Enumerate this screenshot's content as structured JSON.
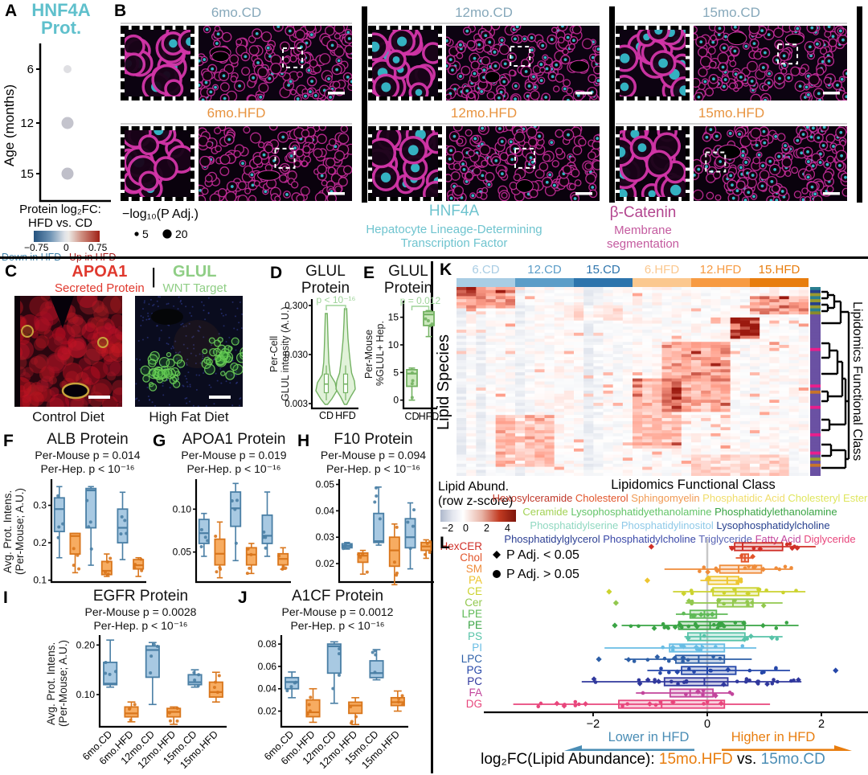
{
  "colors": {
    "teal_title": "#5fc0cc",
    "cd_fill": "#a8c9e2",
    "cd_stroke": "#4a7fa5",
    "hfd_fill": "#f7ac61",
    "hfd_stroke": "#d9761c",
    "green_fill": "#cde9bf",
    "green_stroke": "#74b263",
    "cd_text": "#87a9bb",
    "hfd_text": "#e89440",
    "red_label": "#e0392e",
    "green_label": "#8fce85",
    "magenta_label": "#c45a9f",
    "down_blue": "#3d7fa6",
    "up_red": "#a51c1c"
  },
  "panelA": {
    "letter": "A",
    "title_line1": "HNF4A",
    "title_line2": "Prot.",
    "y_axis": "Age (months)",
    "ages": [
      "6",
      "12",
      "15"
    ],
    "dots": [
      {
        "age": "6",
        "r": 5,
        "color": "#dfdfe3"
      },
      {
        "age": "12",
        "r": 7.5,
        "color": "#c4c4cd"
      },
      {
        "age": "15",
        "r": 7.5,
        "color": "#bfbfc9"
      }
    ],
    "legend": {
      "line1": "Protein log₂FC:",
      "line2": "HFD vs. CD",
      "ticks": [
        "−0.75",
        "0",
        "0.75"
      ],
      "down": "Down in HFD",
      "up": "Up in HFD"
    }
  },
  "panelB": {
    "letter": "B",
    "groups": [
      {
        "cd": "6mo.CD",
        "hfd": "6mo.HFD"
      },
      {
        "cd": "12mo.CD",
        "hfd": "12mo.HFD"
      },
      {
        "cd": "15mo.CD",
        "hfd": "15mo.HFD"
      }
    ],
    "size_legend": {
      "title": "−log₁₀(P Adj.)",
      "small": "5",
      "large": "20"
    },
    "marker1": {
      "name": "HNF4A",
      "line1": "Hepatocyte Lineage-Determining",
      "line2": "Transcription Factor"
    },
    "marker2": {
      "name": "β-Catenin",
      "line1": "Membrane",
      "line2": "segmentation"
    }
  },
  "panelC": {
    "letter": "C",
    "m1": "APOA1",
    "m1sub": "Secreted Protein",
    "m2": "GLUL",
    "m2sub": "WNT Target",
    "divider": "|",
    "cap1": "Control Diet",
    "cap2": "High Fat Diet"
  },
  "panelD": {
    "letter": "D",
    "title1": "GLUL",
    "title2": "Protein",
    "p": "p < 10⁻¹⁶",
    "ylab1": "Per-Cell",
    "ylab2": "GLUL intensity (A.U.)",
    "yticks": [
      "0.300",
      "0.030",
      "0.003"
    ],
    "xlabels": [
      "CD",
      "HFD"
    ]
  },
  "panelE": {
    "letter": "E",
    "title1": "GLUL",
    "title2": "Protein",
    "p": "p = 0.012",
    "ylab1": "Per-Mouse",
    "ylab2": "%GLUL+ Hep.",
    "ylim": [
      -1.5,
      18
    ],
    "yticks": [
      {
        "v": 0,
        "l": "0"
      },
      {
        "v": 5,
        "l": "5"
      },
      {
        "v": 10,
        "l": "10"
      },
      {
        "v": 15,
        "l": "15"
      }
    ],
    "xlabels": [
      "CD",
      "HFD"
    ],
    "boxes": [
      {
        "c": "green",
        "w": [
          0,
          5.8
        ],
        "b": [
          2.5,
          5.5
        ],
        "m": 4.8
      },
      {
        "c": "green",
        "w": [
          11.5,
          16.2
        ],
        "b": [
          13.5,
          16
        ],
        "m": 15.5
      }
    ]
  },
  "panelF": {
    "letter": "F",
    "title": "ALB Protein",
    "p1": "Per-Mouse p = 0.014",
    "p2": "Per-Hep. p < 10⁻¹⁶",
    "ylab1": "Avg. Prot. Intens.",
    "ylab2": "(Per-Mouse; A.U.)",
    "ylim": [
      0.095,
      0.37
    ],
    "yticks": [
      {
        "v": 0.1,
        "l": "0.1"
      },
      {
        "v": 0.2,
        "l": "0.2"
      },
      {
        "v": 0.3,
        "l": "0.3"
      }
    ],
    "boxes": [
      {
        "c": "cd",
        "w": [
          0.16,
          0.35
        ],
        "b": [
          0.23,
          0.32
        ],
        "m": 0.29
      },
      {
        "c": "hfd",
        "w": [
          0.12,
          0.225
        ],
        "b": [
          0.17,
          0.225
        ],
        "m": 0.218
      },
      {
        "c": "cd",
        "w": [
          0.14,
          0.35
        ],
        "b": [
          0.24,
          0.345
        ],
        "m": 0.34
      },
      {
        "c": "hfd",
        "w": [
          0.11,
          0.17
        ],
        "b": [
          0.115,
          0.15
        ],
        "m": 0.125
      },
      {
        "c": "cd",
        "w": [
          0.155,
          0.335
        ],
        "b": [
          0.2,
          0.29
        ],
        "m": 0.24
      },
      {
        "c": "hfd",
        "w": [
          0.11,
          0.16
        ],
        "b": [
          0.13,
          0.155
        ],
        "m": 0.14
      }
    ]
  },
  "panelG": {
    "letter": "G",
    "title": "APOA1 Protein",
    "p1": "Per-Mouse p = 0.019",
    "p2": "Per-Hep. p < 10⁻¹⁶",
    "ylim": [
      0.015,
      0.135
    ],
    "yticks": [
      {
        "v": 0.05,
        "l": "0.05"
      },
      {
        "v": 0.1,
        "l": "0.10"
      }
    ],
    "boxes": [
      {
        "c": "cd",
        "w": [
          0.045,
          0.095
        ],
        "b": [
          0.06,
          0.088
        ],
        "m": 0.072
      },
      {
        "c": "hfd",
        "w": [
          0.02,
          0.085
        ],
        "b": [
          0.035,
          0.065
        ],
        "m": 0.048
      },
      {
        "c": "cd",
        "w": [
          0.04,
          0.13
        ],
        "b": [
          0.08,
          0.12
        ],
        "m": 0.101
      },
      {
        "c": "hfd",
        "w": [
          0.025,
          0.06
        ],
        "b": [
          0.035,
          0.055
        ],
        "m": 0.047
      },
      {
        "c": "cd",
        "w": [
          0.045,
          0.12
        ],
        "b": [
          0.06,
          0.093
        ],
        "m": 0.069
      },
      {
        "c": "hfd",
        "w": [
          0.03,
          0.055
        ],
        "b": [
          0.035,
          0.048
        ],
        "m": 0.042
      }
    ]
  },
  "panelH": {
    "letter": "H",
    "title": "F10 Protein",
    "p1": "Per-Mouse p = 0.094",
    "p2": "Per-Hep. p < 10⁻¹⁶",
    "ylim": [
      0.013,
      0.052
    ],
    "yticks": [
      {
        "v": 0.02,
        "l": "0.02"
      },
      {
        "v": 0.03,
        "l": "0.03"
      },
      {
        "v": 0.04,
        "l": "0.04"
      },
      {
        "v": 0.05,
        "l": "0.05"
      }
    ],
    "boxes": [
      {
        "c": "cd",
        "w": [
          0.0255,
          0.028
        ],
        "b": [
          0.026,
          0.0275
        ],
        "m": 0.0267
      },
      {
        "c": "hfd",
        "w": [
          0.016,
          0.025
        ],
        "b": [
          0.0205,
          0.024
        ],
        "m": 0.023
      },
      {
        "c": "cd",
        "w": [
          0.027,
          0.049
        ],
        "b": [
          0.028,
          0.039
        ],
        "m": 0.0285
      },
      {
        "c": "hfd",
        "w": [
          0.012,
          0.035
        ],
        "b": [
          0.019,
          0.03
        ],
        "m": 0.025
      },
      {
        "c": "cd",
        "w": [
          0.018,
          0.043
        ],
        "b": [
          0.026,
          0.037
        ],
        "m": 0.03
      },
      {
        "c": "hfd",
        "w": [
          0.022,
          0.029
        ],
        "b": [
          0.025,
          0.028
        ],
        "m": 0.0265
      }
    ]
  },
  "panelI": {
    "letter": "I",
    "title": "EGFR Protein",
    "p1": "Per-Mouse p = 0.0028",
    "p2": "Per-Hep. p < 10⁻¹⁶",
    "ylab1": "Avg. Prot. Intens.",
    "ylab2": "(Per-Mouse; A.U.)",
    "ylim": [
      0.035,
      0.22
    ],
    "yticks": [
      {
        "v": 0.1,
        "l": "0.10"
      },
      {
        "v": 0.2,
        "l": "0.20"
      }
    ],
    "xlabels": [
      "6mo.CD",
      "6mo.HFD",
      "12mo.CD",
      "12mo.HFD",
      "15mo.CD",
      "15mo.HFD"
    ],
    "boxes": [
      {
        "c": "cd",
        "w": [
          0.115,
          0.21
        ],
        "b": [
          0.12,
          0.165
        ],
        "m": 0.122
      },
      {
        "c": "hfd",
        "w": [
          0.045,
          0.085
        ],
        "b": [
          0.055,
          0.075
        ],
        "m": 0.062
      },
      {
        "c": "cd",
        "w": [
          0.08,
          0.205
        ],
        "b": [
          0.135,
          0.198
        ],
        "m": 0.19
      },
      {
        "c": "hfd",
        "w": [
          0.04,
          0.075
        ],
        "b": [
          0.055,
          0.072
        ],
        "m": 0.065
      },
      {
        "c": "cd",
        "w": [
          0.115,
          0.15
        ],
        "b": [
          0.12,
          0.14
        ],
        "m": 0.125
      },
      {
        "c": "hfd",
        "w": [
          0.085,
          0.145
        ],
        "b": [
          0.095,
          0.125
        ],
        "m": 0.105
      }
    ]
  },
  "panelJ": {
    "letter": "J",
    "title": "A1CF Protein",
    "p1": "Per-Mouse p = 0.0012",
    "p2": "Per-Hep. p < 10⁻¹⁶",
    "ylim": [
      0.006,
      0.088
    ],
    "yticks": [
      {
        "v": 0.02,
        "l": "0.02"
      },
      {
        "v": 0.04,
        "l": "0.04"
      },
      {
        "v": 0.06,
        "l": "0.06"
      },
      {
        "v": 0.08,
        "l": "0.08"
      }
    ],
    "xlabels": [
      "6mo.CD",
      "6mo.HFD",
      "12mo.CD",
      "12mo.HFD",
      "15mo.CD",
      "15mo.HFD"
    ],
    "boxes": [
      {
        "c": "cd",
        "w": [
          0.032,
          0.055
        ],
        "b": [
          0.04,
          0.05
        ],
        "m": 0.046
      },
      {
        "c": "hfd",
        "w": [
          0.01,
          0.04
        ],
        "b": [
          0.015,
          0.03
        ],
        "m": 0.019
      },
      {
        "c": "cd",
        "w": [
          0.027,
          0.082
        ],
        "b": [
          0.054,
          0.08
        ],
        "m": 0.078
      },
      {
        "c": "hfd",
        "w": [
          0.008,
          0.032
        ],
        "b": [
          0.018,
          0.028
        ],
        "m": 0.025
      },
      {
        "c": "cd",
        "w": [
          0.048,
          0.075
        ],
        "b": [
          0.05,
          0.065
        ],
        "m": 0.054
      },
      {
        "c": "hfd",
        "w": [
          0.02,
          0.038
        ],
        "b": [
          0.025,
          0.032
        ],
        "m": 0.028
      }
    ]
  },
  "panelK": {
    "letter": "K",
    "columns": [
      {
        "label": "6.CD",
        "color": "#a9cde4"
      },
      {
        "label": "12.CD",
        "color": "#5b9dc8"
      },
      {
        "label": "15.CD",
        "color": "#2d74ac"
      },
      {
        "label": "6.HFD",
        "color": "#fbc88f"
      },
      {
        "label": "12.HFD",
        "color": "#f79b43"
      },
      {
        "label": "15.HFD",
        "color": "#e87d0e"
      }
    ],
    "left_label": "Lipid Species",
    "right_label": "Lipidomics Functional Class",
    "abund_legend": {
      "line1": "Lipid Abund.",
      "line2": "(row z-score)",
      "ticks": [
        "−2",
        "0",
        "2",
        "4"
      ]
    },
    "class_legend": {
      "title": "Lipidomics Functional Class",
      "lines": [
        [
          {
            "t": "Hexosylceramide",
            "c": "#c0392b"
          },
          {
            "t": "Cholesterol",
            "c": "#e2552b"
          },
          {
            "t": "Sphingomyelin",
            "c": "#f09a54"
          },
          {
            "t": "Phosphatidic Acid",
            "c": "#f0dd6a"
          },
          {
            "t": "Cholesteryl Ester",
            "c": "#dfe65e"
          }
        ],
        [
          {
            "t": "Ceramide",
            "c": "#a2d254"
          },
          {
            "t": "Lysophosphatidyethanolamine",
            "c": "#63c468"
          },
          {
            "t": "Phosphatidylethanolamine",
            "c": "#3aa445"
          }
        ],
        [
          {
            "t": "Phosphatidylserine",
            "c": "#8fd8c0"
          },
          {
            "t": "Phosphatidylinositol",
            "c": "#8ec9e8"
          },
          {
            "t": "Lysophosphatidylcholine",
            "c": "#27418f"
          }
        ],
        [
          {
            "t": "Phosphatidylglycerol",
            "c": "#2c3f93"
          },
          {
            "t": "Phosphatidylcholine",
            "c": "#3a48a8"
          },
          {
            "t": "Triglyceride",
            "c": "#5964b5"
          },
          {
            "t": "Fatty Acid",
            "c": "#c2459c"
          },
          {
            "t": "Diglyceride",
            "c": "#e8467c"
          }
        ]
      ]
    }
  },
  "panelL": {
    "letter": "L",
    "legend": [
      {
        "marker": "diamond",
        "text": "P Adj. < 0.05"
      },
      {
        "marker": "circle",
        "text": "P Adj. > 0.05"
      }
    ],
    "xticks": [
      {
        "v": -2,
        "l": "−2"
      },
      {
        "v": 0,
        "l": "0"
      },
      {
        "v": 2,
        "l": "2"
      }
    ],
    "lower": "Lower in HFD",
    "higher": "Higher in HFD",
    "title_prefix": "log₂FC(Lipid Abundance): ",
    "title_hfd": "15mo.HFD",
    "title_vs": " vs. ",
    "title_cd": "15mo.CD",
    "cats": [
      {
        "label": "HexCER",
        "color": "#d03028",
        "m": 0.62,
        "b": [
          0.48,
          1.32
        ],
        "w": [
          0.38,
          1.9
        ],
        "out": [
          -0.98
        ],
        "n": 8
      },
      {
        "label": "Chol",
        "color": "#e2552b",
        "m": 0.66,
        "b": [
          0.6,
          0.72
        ],
        "w": [
          0.5,
          0.8
        ],
        "out": [],
        "n": 2
      },
      {
        "label": "SM",
        "color": "#ef8c3a",
        "m": 0.55,
        "b": [
          0.22,
          0.95
        ],
        "w": [
          -0.75,
          1.5
        ],
        "out": [],
        "n": 14
      },
      {
        "label": "PA",
        "color": "#edc531",
        "m": 0.35,
        "b": [
          0.02,
          0.55
        ],
        "w": [
          -0.12,
          0.62
        ],
        "out": [
          -1.05
        ],
        "n": 6
      },
      {
        "label": "CE",
        "color": "#ccd32f",
        "m": 0.5,
        "b": [
          0.1,
          0.9
        ],
        "w": [
          -0.6,
          1.72
        ],
        "out": [
          -1.72
        ],
        "n": 12
      },
      {
        "label": "Cer",
        "color": "#92c84e",
        "m": 0.45,
        "b": [
          0.18,
          0.8
        ],
        "w": [
          -0.38,
          1.32
        ],
        "out": [
          -1.6
        ],
        "n": 10
      },
      {
        "label": "LPE",
        "color": "#5fba57",
        "m": -0.05,
        "b": [
          -0.3,
          0.16
        ],
        "w": [
          -0.55,
          0.36
        ],
        "out": [],
        "n": 7
      },
      {
        "label": "PE",
        "color": "#3aa445",
        "m": 0.05,
        "b": [
          -0.5,
          0.66
        ],
        "w": [
          -1.5,
          1.6
        ],
        "out": [
          -1.62
        ],
        "n": 26
      },
      {
        "label": "PS",
        "color": "#57c3a8",
        "m": -0.12,
        "b": [
          -0.34,
          0.66
        ],
        "w": [
          -0.4,
          1.32
        ],
        "out": [],
        "n": 7
      },
      {
        "label": "PI",
        "color": "#68bde4",
        "m": -0.1,
        "b": [
          -0.66,
          0.3
        ],
        "w": [
          -1.8,
          0.86
        ],
        "out": [],
        "n": 12
      },
      {
        "label": "LPC",
        "color": "#2d5fa7",
        "m": -0.15,
        "b": [
          -0.55,
          0.3
        ],
        "w": [
          -1.45,
          0.78
        ],
        "out": [
          -1.9
        ],
        "n": 12
      },
      {
        "label": "PG",
        "color": "#2547a9",
        "m": 0.0,
        "b": [
          -0.45,
          0.5
        ],
        "w": [
          -1.05,
          1.45
        ],
        "out": [
          2.25
        ],
        "n": 14
      },
      {
        "label": "PC",
        "color": "#30389d",
        "m": -0.05,
        "b": [
          -0.75,
          0.36
        ],
        "w": [
          -2.2,
          1.65
        ],
        "out": [],
        "n": 30
      },
      {
        "label": "FA",
        "color": "#c2459c",
        "m": -0.3,
        "b": [
          -0.65,
          0.1
        ],
        "w": [
          -1.25,
          0.45
        ],
        "out": [],
        "n": 9
      },
      {
        "label": "DG",
        "color": "#e8467c",
        "m": -0.8,
        "b": [
          -1.55,
          0.3
        ],
        "w": [
          -3.4,
          1.1
        ],
        "out": [],
        "n": 18
      }
    ]
  }
}
